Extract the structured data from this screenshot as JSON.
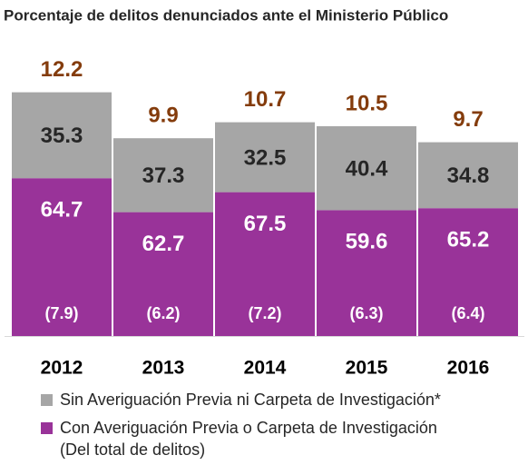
{
  "chart_data": {
    "type": "bar",
    "title": "Porcentaje de delitos denunciados ante el Ministerio Público",
    "categories": [
      "2012",
      "2013",
      "2014",
      "2015",
      "2016"
    ],
    "totals": [
      12.2,
      9.9,
      10.7,
      10.5,
      9.7
    ],
    "totals_color": "#843c0c",
    "series": [
      {
        "name": "Sin Averiguación Previa ni Carpeta de Investigación*",
        "color": "#a6a6a6",
        "values": [
          35.3,
          37.3,
          32.5,
          40.4,
          34.8
        ]
      },
      {
        "name": "Con Averiguación Previa o Carpeta de Investigación",
        "color": "#993399",
        "values": [
          64.7,
          62.7,
          67.5,
          59.6,
          65.2
        ],
        "absolute_values": [
          7.9,
          6.2,
          7.2,
          6.3,
          6.4
        ],
        "absolute_value_labels": [
          "(7.9)",
          "(6.2)",
          "(7.2)",
          "(6.3)",
          "(6.4)"
        ]
      }
    ],
    "legend_note": "(Del total de delitos)"
  }
}
